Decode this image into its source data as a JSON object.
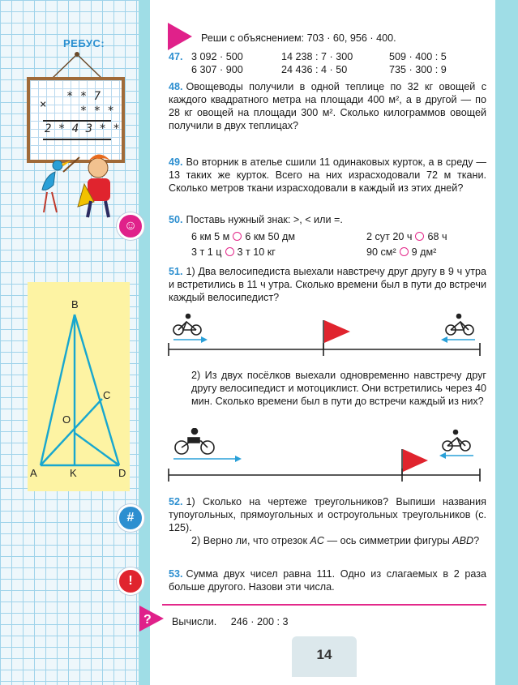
{
  "rebus": {
    "title": "РЕБУС:",
    "line1": "  * * 7",
    "line2": "×",
    "line3": "    * * *",
    "line4": "2 * 4 3 * *"
  },
  "triangle": {
    "A": "A",
    "B": "B",
    "C": "C",
    "D": "D",
    "O": "O",
    "K": "K"
  },
  "header_task": "Реши с объяснением:  703 · 60,  956 · 400.",
  "t47": {
    "num": "47.",
    "cells": [
      "3 092 · 500",
      "14 238 : 7 · 300",
      "509 · 400 : 5",
      "6 307 · 900",
      "24 436 : 4 · 50",
      "735 · 300 : 9"
    ]
  },
  "t48": {
    "num": "48.",
    "text": "Овощеводы получили в одной теплице по 32 кг овощей с каждого квадратного метра на площади 400 м², а в другой — по 28 кг овощей на площади 300 м². Сколько килограммов овощей получили в двух теплицах?"
  },
  "t49": {
    "num": "49.",
    "text": "Во вторник в ателье сшили 11 одинаковых курток, а в среду — 13 таких же курток. Всего на них израсходовали 72 м ткани. Сколько метров ткани израсходовали в каждый из этих дней?"
  },
  "t50": {
    "num": "50.",
    "text": "Поставь нужный знак: >, < или =.",
    "a1": "6 км 5 м",
    "a2": "6 км 50 дм",
    "b1": "2 сут 20 ч",
    "b2": "68 ч",
    "c1": "3 т 1 ц",
    "c2": "3 т 10 кг",
    "d1": "90 см²",
    "d2": "9 дм²"
  },
  "t51": {
    "num": "51.",
    "text1": "1) Два велосипедиста выехали навстречу друг другу в 9 ч утра и встретились в 11 ч утра. Сколько времени был в пути до встречи каждый велосипедист?",
    "text2": "2) Из двух посёлков выехали одновременно навстречу друг другу велосипедист и мотоциклист. Они встретились через 40 мин. Сколько времени был в пути до встречи каждый из них?"
  },
  "t52": {
    "num": "52.",
    "text1": "1) Сколько на чертеже треугольников? Выпиши названия тупоугольных, прямоугольных и остроугольных треугольников (с. 125).",
    "text2a": "2) Верно ли, что отрезок ",
    "ac": "AC",
    "text2b": " — ось симметрии фигуры ",
    "abd": "ABD",
    "text2c": "?"
  },
  "t53": {
    "num": "53.",
    "text": "Сумма двух чисел равна 111. Одно из слагаемых в 2 раза больше другого. Назови эти числа."
  },
  "footer": {
    "label": "Вычисли.",
    "expr": "246 · 200 : 3"
  },
  "page_number": "14",
  "icons": {
    "pink": "#e0218a",
    "blue": "#2d8fd0",
    "red": "#e0242e"
  }
}
